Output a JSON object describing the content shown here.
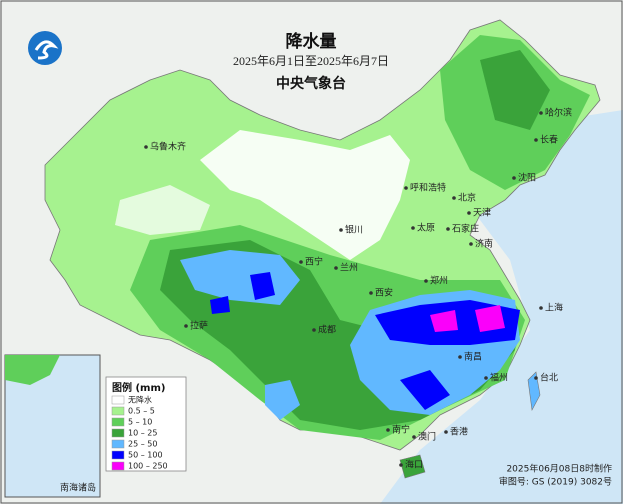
{
  "header": {
    "title": "降水量",
    "date_range": "2025年6月1日至2025年6月7日",
    "agency": "中央气象台"
  },
  "legend": {
    "title": "图例 (mm)",
    "items": [
      {
        "label": "无降水",
        "color": "#ffffff"
      },
      {
        "label": "0.5 – 5",
        "color": "#a6f28f"
      },
      {
        "label": "5 – 10",
        "color": "#5fcf5a"
      },
      {
        "label": "10 – 25",
        "color": "#3aa33a"
      },
      {
        "label": "25 – 50",
        "color": "#61b8ff"
      },
      {
        "label": "50 – 100",
        "color": "#0000fe"
      },
      {
        "label": "100 – 250",
        "color": "#fa00fa"
      }
    ]
  },
  "cities": [
    {
      "name": "乌鲁木齐"
    },
    {
      "name": "哈尔滨"
    },
    {
      "name": "长春"
    },
    {
      "name": "沈阳"
    },
    {
      "name": "呼和浩特"
    },
    {
      "name": "北京"
    },
    {
      "name": "天津"
    },
    {
      "name": "银川"
    },
    {
      "name": "太原"
    },
    {
      "name": "石家庄"
    },
    {
      "name": "济南"
    },
    {
      "name": "西宁"
    },
    {
      "name": "兰州"
    },
    {
      "name": "郑州"
    },
    {
      "name": "西安"
    },
    {
      "name": "拉萨"
    },
    {
      "name": "成都"
    },
    {
      "name": "上海"
    },
    {
      "name": "南昌"
    },
    {
      "name": "福州"
    },
    {
      "name": "台北"
    },
    {
      "name": "南宁"
    },
    {
      "name": "澳门"
    },
    {
      "name": "香港"
    },
    {
      "name": "海口"
    }
  ],
  "inset": {
    "label": "南海诸岛"
  },
  "footer": {
    "made": "2025年06月08日8时制作",
    "approval": "审图号: GS (2019) 3082号"
  }
}
